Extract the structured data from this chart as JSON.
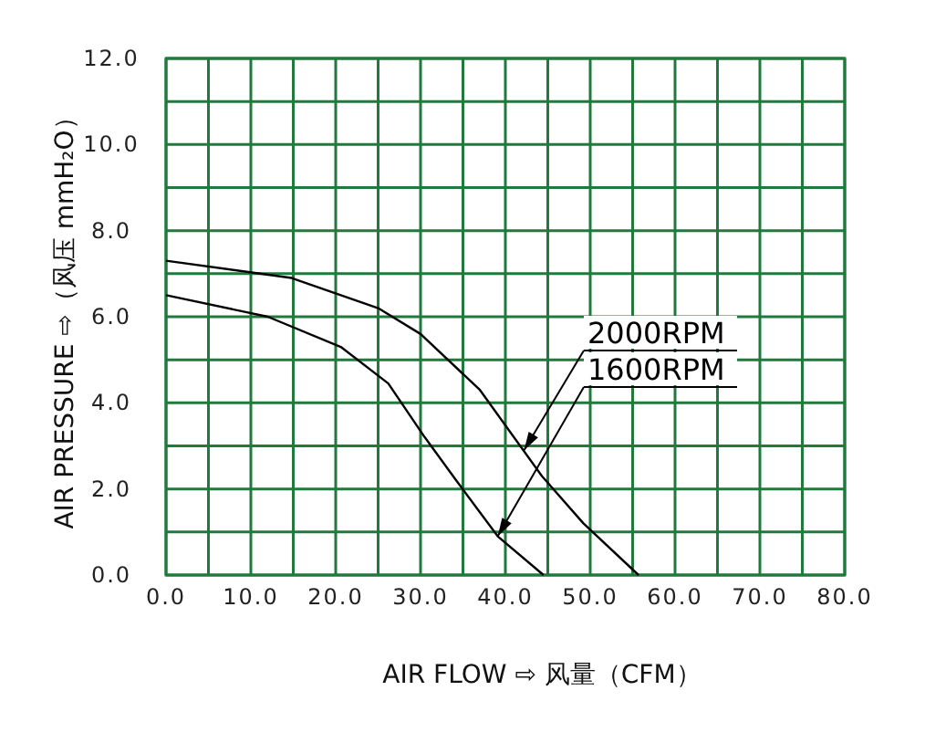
{
  "chart_data": {
    "type": "line",
    "xlabel": "AIR FLOW ⇨ 风量（CFM）",
    "ylabel": "AIR PRESSURE ⇨（风压 mmH₂O）",
    "xlim": [
      0,
      80
    ],
    "ylim": [
      0,
      12
    ],
    "xticks": [
      {
        "value": 0,
        "label": "0.0"
      },
      {
        "value": 10,
        "label": "10.0"
      },
      {
        "value": 20,
        "label": "20.0"
      },
      {
        "value": 30,
        "label": "30.0"
      },
      {
        "value": 40,
        "label": "40.0"
      },
      {
        "value": 50,
        "label": "50.0"
      },
      {
        "value": 60,
        "label": "60.0"
      },
      {
        "value": 70,
        "label": "70.0"
      },
      {
        "value": 80,
        "label": "80.0"
      }
    ],
    "yticks": [
      {
        "value": 0,
        "label": "0.0"
      },
      {
        "value": 2,
        "label": "2.0"
      },
      {
        "value": 4,
        "label": "4.0"
      },
      {
        "value": 6,
        "label": "6.0"
      },
      {
        "value": 8,
        "label": "8.0"
      },
      {
        "value": 10,
        "label": "10.0"
      },
      {
        "value": 12,
        "label": "12.0"
      }
    ],
    "grid": true,
    "line_style": "solid",
    "series": [
      {
        "color": "#000000",
        "x": [
          0,
          14.8,
          25,
          30,
          37,
          44.3,
          49.2,
          55.7
        ],
        "values": [
          7.3,
          6.9,
          6.2,
          5.6,
          4.3,
          2.3,
          1.2,
          0
        ]
      },
      {
        "color": "#000000",
        "x": [
          0,
          12,
          20.6,
          26.2,
          30.5,
          34.2,
          39.1,
          44.5
        ],
        "values": [
          6.5,
          6.0,
          5.3,
          4.45,
          3.2,
          2.2,
          0.9,
          0
        ]
      }
    ],
    "annotations": [
      {
        "text": "2000RPM",
        "x": 42.2,
        "y": 2.9
      },
      {
        "text": "1600RPM",
        "x": 39.1,
        "y": 0.9
      }
    ]
  }
}
